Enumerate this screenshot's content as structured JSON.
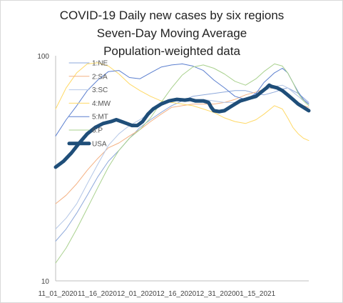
{
  "chart_data": {
    "type": "line",
    "title": [
      "COVID-19 Daily new cases by six regions",
      "Seven-Day Moving Average",
      "Population-weighted data"
    ],
    "y_scale": "log",
    "ylim": [
      10,
      100
    ],
    "y_ticks": [
      "10",
      "100"
    ],
    "x_tick_labels": [
      "11_01_2020",
      "11_16_2020",
      "12_01_2020",
      "12_16_2020",
      "12_31_2020",
      "01_15_2021"
    ],
    "grid": false,
    "legend_position": "top-left",
    "series": [
      {
        "name": "1:NE",
        "color": "#8ea9db",
        "width": 1,
        "values": [
          [
            0,
            15
          ],
          [
            4,
            17
          ],
          [
            8,
            20
          ],
          [
            12,
            24
          ],
          [
            16,
            29
          ],
          [
            20,
            34
          ],
          [
            24,
            38
          ],
          [
            28,
            43
          ],
          [
            32,
            48
          ],
          [
            36,
            52
          ],
          [
            40,
            56
          ],
          [
            44,
            60
          ],
          [
            48,
            63
          ],
          [
            52,
            66
          ],
          [
            56,
            67
          ],
          [
            60,
            68
          ],
          [
            64,
            69
          ],
          [
            68,
            70
          ],
          [
            72,
            70
          ],
          [
            76,
            68
          ],
          [
            79,
            67
          ],
          [
            83,
            69
          ],
          [
            86,
            71
          ],
          [
            88,
            72
          ],
          [
            90,
            70
          ],
          [
            92,
            68
          ],
          [
            94,
            65
          ],
          [
            96,
            62
          ]
        ]
      },
      {
        "name": "2:SA",
        "color": "#f4b183",
        "width": 1,
        "values": [
          [
            0,
            22
          ],
          [
            4,
            24
          ],
          [
            8,
            27
          ],
          [
            12,
            31
          ],
          [
            16,
            35
          ],
          [
            20,
            39
          ],
          [
            24,
            41
          ],
          [
            28,
            44
          ],
          [
            32,
            47
          ],
          [
            36,
            51
          ],
          [
            40,
            55
          ],
          [
            44,
            59
          ],
          [
            48,
            60
          ],
          [
            52,
            61
          ],
          [
            56,
            61
          ],
          [
            60,
            61
          ],
          [
            64,
            62
          ],
          [
            68,
            64
          ],
          [
            72,
            67
          ],
          [
            76,
            69
          ],
          [
            79,
            71
          ],
          [
            83,
            72
          ],
          [
            86,
            70
          ],
          [
            88,
            67
          ],
          [
            90,
            64
          ],
          [
            92,
            62
          ],
          [
            94,
            60
          ],
          [
            96,
            59
          ]
        ]
      },
      {
        "name": "3:SC",
        "color": "#b4c7e7",
        "width": 1,
        "values": [
          [
            0,
            17
          ],
          [
            4,
            19
          ],
          [
            8,
            22
          ],
          [
            12,
            27
          ],
          [
            16,
            33
          ],
          [
            20,
            40
          ],
          [
            24,
            45
          ],
          [
            28,
            49
          ],
          [
            32,
            52
          ],
          [
            36,
            56
          ],
          [
            40,
            60
          ],
          [
            44,
            63
          ],
          [
            48,
            64
          ],
          [
            52,
            64
          ],
          [
            56,
            64
          ],
          [
            60,
            63
          ],
          [
            64,
            62
          ],
          [
            68,
            62
          ],
          [
            72,
            64
          ],
          [
            76,
            67
          ],
          [
            79,
            70
          ],
          [
            83,
            73
          ],
          [
            86,
            74
          ],
          [
            88,
            72
          ],
          [
            90,
            69
          ],
          [
            92,
            66
          ],
          [
            94,
            63
          ],
          [
            96,
            61
          ]
        ]
      },
      {
        "name": "4:MW",
        "color": "#ffd966",
        "width": 1,
        "values": [
          [
            0,
            58
          ],
          [
            4,
            72
          ],
          [
            8,
            84
          ],
          [
            12,
            92
          ],
          [
            16,
            93
          ],
          [
            20,
            90
          ],
          [
            24,
            83
          ],
          [
            28,
            75
          ],
          [
            32,
            70
          ],
          [
            36,
            66
          ],
          [
            40,
            63
          ],
          [
            44,
            62
          ],
          [
            48,
            61
          ],
          [
            52,
            60
          ],
          [
            56,
            58
          ],
          [
            60,
            56
          ],
          [
            64,
            53
          ],
          [
            68,
            51
          ],
          [
            72,
            50
          ],
          [
            76,
            52
          ],
          [
            79,
            55
          ],
          [
            83,
            60
          ],
          [
            86,
            58
          ],
          [
            88,
            53
          ],
          [
            90,
            48
          ],
          [
            92,
            45
          ],
          [
            94,
            43
          ],
          [
            96,
            42
          ]
        ]
      },
      {
        "name": "5:MT",
        "color": "#5b7fcf",
        "width": 1,
        "values": [
          [
            0,
            44
          ],
          [
            4,
            52
          ],
          [
            8,
            60
          ],
          [
            12,
            70
          ],
          [
            16,
            78
          ],
          [
            20,
            85
          ],
          [
            24,
            86
          ],
          [
            28,
            80
          ],
          [
            32,
            79
          ],
          [
            36,
            84
          ],
          [
            40,
            89
          ],
          [
            44,
            91
          ],
          [
            48,
            92
          ],
          [
            52,
            90
          ],
          [
            56,
            86
          ],
          [
            60,
            78
          ],
          [
            64,
            72
          ],
          [
            68,
            66
          ],
          [
            72,
            64
          ],
          [
            76,
            68
          ],
          [
            79,
            76
          ],
          [
            83,
            84
          ],
          [
            86,
            88
          ],
          [
            88,
            84
          ],
          [
            90,
            76
          ],
          [
            92,
            69
          ],
          [
            94,
            64
          ],
          [
            96,
            61
          ]
        ]
      },
      {
        "name": "6:P",
        "color": "#a9d18e",
        "width": 1,
        "values": [
          [
            0,
            12
          ],
          [
            4,
            14
          ],
          [
            8,
            17
          ],
          [
            12,
            21
          ],
          [
            16,
            26
          ],
          [
            20,
            32
          ],
          [
            24,
            38
          ],
          [
            28,
            43
          ],
          [
            32,
            47
          ],
          [
            36,
            53
          ],
          [
            40,
            62
          ],
          [
            44,
            72
          ],
          [
            48,
            82
          ],
          [
            52,
            89
          ],
          [
            56,
            91
          ],
          [
            60,
            88
          ],
          [
            64,
            83
          ],
          [
            68,
            77
          ],
          [
            72,
            74
          ],
          [
            76,
            79
          ],
          [
            79,
            85
          ],
          [
            83,
            92
          ],
          [
            86,
            90
          ],
          [
            88,
            84
          ],
          [
            90,
            76
          ],
          [
            92,
            68
          ],
          [
            94,
            63
          ],
          [
            96,
            60
          ]
        ]
      },
      {
        "name": "USA",
        "color": "#1f4e79",
        "width": 5,
        "values": [
          [
            0,
            32
          ],
          [
            3,
            34
          ],
          [
            6,
            37
          ],
          [
            9,
            41
          ],
          [
            12,
            45
          ],
          [
            15,
            48
          ],
          [
            18,
            50
          ],
          [
            21,
            51
          ],
          [
            23,
            52
          ],
          [
            25,
            51
          ],
          [
            27,
            50
          ],
          [
            29,
            49
          ],
          [
            31,
            49
          ],
          [
            33,
            51
          ],
          [
            35,
            55
          ],
          [
            37,
            58
          ],
          [
            40,
            61
          ],
          [
            43,
            63
          ],
          [
            46,
            64
          ],
          [
            49,
            63.5
          ],
          [
            51,
            64
          ],
          [
            53,
            63
          ],
          [
            56,
            63
          ],
          [
            58,
            62
          ],
          [
            59,
            59
          ],
          [
            60,
            57
          ],
          [
            62,
            56.5
          ],
          [
            64,
            57
          ],
          [
            66,
            59
          ],
          [
            68,
            61
          ],
          [
            70,
            63
          ],
          [
            72,
            64
          ],
          [
            74,
            65
          ],
          [
            76,
            66
          ],
          [
            78,
            69
          ],
          [
            80,
            72
          ],
          [
            81,
            74
          ],
          [
            82,
            73
          ],
          [
            84,
            72
          ],
          [
            86,
            70
          ],
          [
            88,
            67
          ],
          [
            90,
            64
          ],
          [
            92,
            61
          ],
          [
            94,
            59
          ],
          [
            96,
            57
          ]
        ]
      }
    ],
    "x_range": [
      0,
      96
    ],
    "x_tick_positions": [
      0,
      15,
      30,
      45,
      60,
      75
    ]
  }
}
